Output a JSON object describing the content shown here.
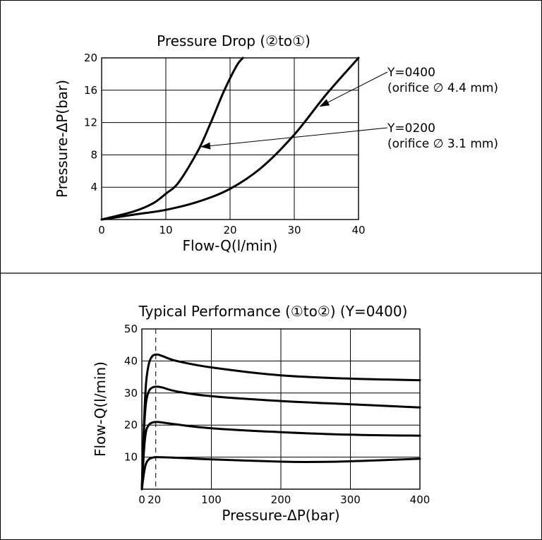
{
  "chart_data": [
    {
      "type": "line",
      "title": "Pressure Drop (②to①)",
      "xlabel": "Flow-Q(l/min)",
      "ylabel": "Pressure-ΔP(bar)",
      "xlim": [
        0,
        40
      ],
      "ylim": [
        0,
        20
      ],
      "x_ticks": [
        0,
        10,
        20,
        30,
        40
      ],
      "y_ticks": [
        4,
        8,
        12,
        16,
        20
      ],
      "grid": true,
      "series": [
        {
          "values_xy": [
            [
              0,
              0
            ],
            [
              5,
              1
            ],
            [
              8,
              2
            ],
            [
              10,
              3.2
            ],
            [
              12,
              4.6
            ],
            [
              15,
              8.5
            ],
            [
              17,
              12
            ],
            [
              19,
              15.8
            ],
            [
              21,
              19
            ],
            [
              22,
              20
            ]
          ]
        },
        {
          "values_xy": [
            [
              0,
              0
            ],
            [
              5,
              0.6
            ],
            [
              10,
              1.2
            ],
            [
              15,
              2.2
            ],
            [
              20,
              3.8
            ],
            [
              25,
              6.5
            ],
            [
              30,
              10.5
            ],
            [
              35,
              15.5
            ],
            [
              40,
              20
            ]
          ]
        }
      ],
      "annotations": [
        {
          "line1": "Y=0400",
          "line2": "(orifice  ∅ 4.4 mm)",
          "points_to": [
            34,
            14
          ]
        },
        {
          "line1": "Y=0200",
          "line2": "(orifice  ∅ 3.1 mm)",
          "points_to": [
            15.5,
            9
          ]
        }
      ]
    },
    {
      "type": "line",
      "title": "Typical Performance (①to②) (Y=0400)",
      "xlabel": "Pressure-ΔP(bar)",
      "ylabel": "Flow-Q(l/min)",
      "xlim": [
        0,
        400
      ],
      "ylim": [
        0,
        50
      ],
      "x_ticks": [
        0,
        20,
        100,
        200,
        300,
        400
      ],
      "y_ticks": [
        10,
        20,
        30,
        40,
        50
      ],
      "grid": true,
      "reference_line_x": 20,
      "series": [
        {
          "values_xy": [
            [
              0,
              0
            ],
            [
              3,
              20
            ],
            [
              6,
              33
            ],
            [
              10,
              39
            ],
            [
              15,
              41.5
            ],
            [
              22,
              42
            ],
            [
              30,
              41.5
            ],
            [
              50,
              40
            ],
            [
              100,
              38
            ],
            [
              200,
              35.5
            ],
            [
              300,
              34.5
            ],
            [
              400,
              34
            ]
          ]
        },
        {
          "values_xy": [
            [
              0,
              0
            ],
            [
              3,
              18
            ],
            [
              6,
              27
            ],
            [
              10,
              30.5
            ],
            [
              15,
              31.7
            ],
            [
              22,
              32
            ],
            [
              30,
              31.7
            ],
            [
              50,
              30.5
            ],
            [
              100,
              29
            ],
            [
              200,
              27.5
            ],
            [
              300,
              26.5
            ],
            [
              400,
              25.5
            ]
          ]
        },
        {
          "values_xy": [
            [
              0,
              0
            ],
            [
              3,
              12
            ],
            [
              6,
              18
            ],
            [
              10,
              20
            ],
            [
              15,
              20.8
            ],
            [
              22,
              21
            ],
            [
              30,
              20.8
            ],
            [
              50,
              20.2
            ],
            [
              100,
              19
            ],
            [
              200,
              17.8
            ],
            [
              300,
              17
            ],
            [
              400,
              16.7
            ]
          ]
        },
        {
          "values_xy": [
            [
              0,
              0
            ],
            [
              3,
              5
            ],
            [
              6,
              8
            ],
            [
              10,
              9.3
            ],
            [
              15,
              9.8
            ],
            [
              22,
              10
            ],
            [
              50,
              9.8
            ],
            [
              100,
              9.3
            ],
            [
              200,
              8.6
            ],
            [
              250,
              8.5
            ],
            [
              300,
              8.7
            ],
            [
              400,
              9.5
            ]
          ]
        }
      ]
    }
  ]
}
